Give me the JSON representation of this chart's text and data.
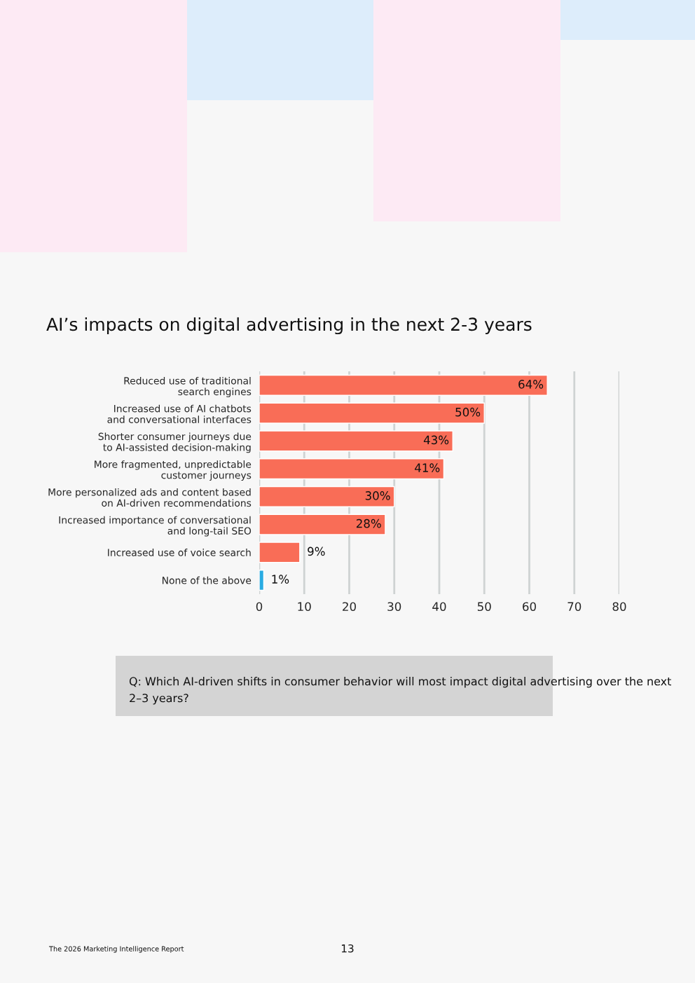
{
  "chart_data": {
    "type": "bar",
    "orientation": "horizontal",
    "title": "AI’s impacts on digital advertising in the next 2-3 years",
    "categories": [
      "Reduced use of traditional\nsearch engines",
      "Increased use of AI chatbots\nand conversational interfaces",
      "Shorter consumer journeys due\nto AI-assisted decision-making",
      "More fragmented, unpredictable\ncustomer journeys",
      "More personalized ads and content based\non AI-driven recommendations",
      "Increased importance of conversational\nand long-tail SEO",
      "Increased use of voice search",
      "None of the above"
    ],
    "values": [
      64,
      50,
      43,
      41,
      30,
      28,
      9,
      1
    ],
    "value_labels": [
      "64%",
      "50%",
      "43%",
      "41%",
      "30%",
      "28%",
      "9%",
      "1%"
    ],
    "colors": [
      "#f96d57",
      "#f96d57",
      "#f96d57",
      "#f96d57",
      "#f96d57",
      "#f96d57",
      "#f96d57",
      "#29abe2"
    ],
    "xlim": [
      0,
      80
    ],
    "xticks": [
      0,
      10,
      20,
      30,
      40,
      50,
      60,
      70,
      80
    ],
    "grid": "x",
    "annotations": [
      "Q: Which AI-driven shifts in consumer behavior will most impact digital advertising over the next 2–3 years?",
      "The 2026 Marketing Intelligence Report",
      "13"
    ]
  }
}
